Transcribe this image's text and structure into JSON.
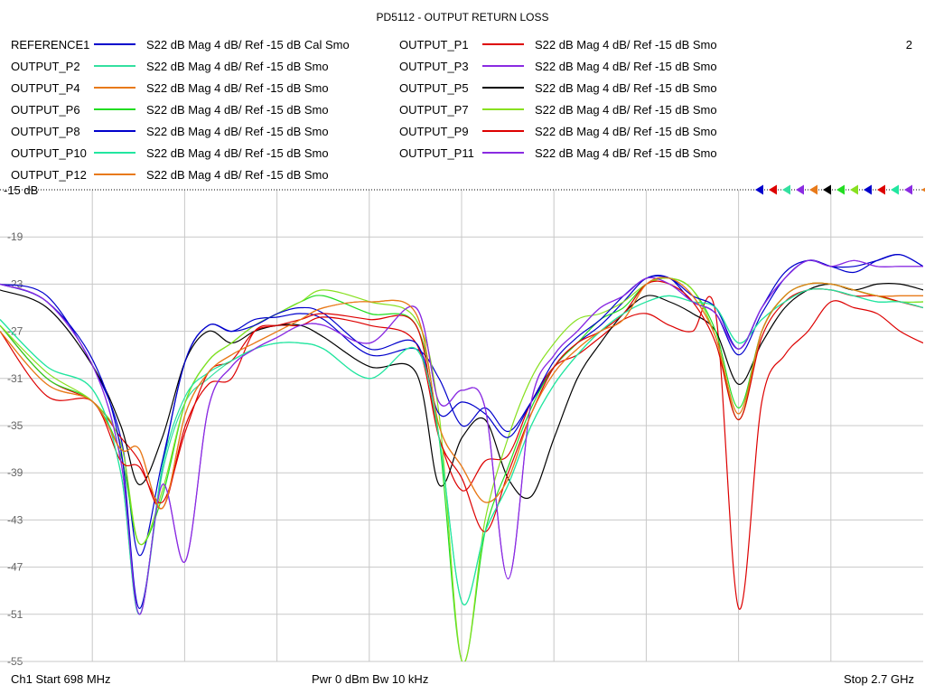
{
  "header": {
    "title": "PD5112 - OUTPUT RETURN LOSS",
    "channel_number": "2"
  },
  "legend": [
    {
      "name": "REFERENCE1",
      "desc": "S22  dB Mag  4 dB/ Ref -15 dB  Cal Smo",
      "color": "#0000cc"
    },
    {
      "name": "OUTPUT_P1",
      "desc": "S22  dB Mag  4 dB/ Ref -15 dB  Smo",
      "color": "#dd0000"
    },
    {
      "name": "OUTPUT_P2",
      "desc": "S22  dB Mag  4 dB/ Ref -15 dB  Smo",
      "color": "#33e0a0"
    },
    {
      "name": "OUTPUT_P3",
      "desc": "S22  dB Mag  4 dB/ Ref -15 dB  Smo",
      "color": "#8a2be2"
    },
    {
      "name": "OUTPUT_P4",
      "desc": "S22  dB Mag  4 dB/ Ref -15 dB  Smo",
      "color": "#e87a1a"
    },
    {
      "name": "OUTPUT_P5",
      "desc": "S22  dB Mag  4 dB/ Ref -15 dB  Smo",
      "color": "#000000"
    },
    {
      "name": "OUTPUT_P6",
      "desc": "S22  dB Mag  4 dB/ Ref -15 dB  Smo",
      "color": "#22dd22"
    },
    {
      "name": "OUTPUT_P7",
      "desc": "S22  dB Mag  4 dB/ Ref -15 dB  Smo",
      "color": "#88e020"
    },
    {
      "name": "OUTPUT_P8",
      "desc": "S22  dB Mag  4 dB/ Ref -15 dB  Smo",
      "color": "#0000cc"
    },
    {
      "name": "OUTPUT_P9",
      "desc": "S22  dB Mag  4 dB/ Ref -15 dB  Smo",
      "color": "#dd0000"
    },
    {
      "name": "OUTPUT_P10",
      "desc": "S22  dB Mag  4 dB/ Ref -15 dB  Smo",
      "color": "#22e6a0"
    },
    {
      "name": "OUTPUT_P11",
      "desc": "S22  dB Mag  4 dB/ Ref -15 dB  Smo",
      "color": "#8a2be2"
    },
    {
      "name": "OUTPUT_P12",
      "desc": "S22  dB Mag  4 dB/ Ref -15 dB  Smo",
      "color": "#e87a1a"
    }
  ],
  "ref_label": "-15 dB",
  "footer": {
    "start": "Ch1  Start  698 MHz",
    "power": "Pwr  0 dBm  Bw  10 kHz",
    "stop": "Stop  2.7 GHz"
  },
  "chart_data": {
    "type": "line",
    "title": "PD5112 - OUTPUT RETURN LOSS",
    "xlabel": "",
    "ylabel": "",
    "xlim": [
      698,
      2700
    ],
    "ylim": [
      -55,
      -15
    ],
    "x_unit": "MHz",
    "y_unit": "dB",
    "grid": true,
    "y_ticks": [
      -19,
      -23,
      -27,
      -31,
      -35,
      -39,
      -43,
      -47,
      -51,
      -55
    ],
    "y_tick_labels": [
      "-19",
      "-23",
      "-27",
      "-31",
      "-35",
      "-39",
      "-43",
      "-47",
      "-51",
      "-55"
    ],
    "x_divisions": 10,
    "series": [
      {
        "name": "REFERENCE1",
        "color": "#0000cc",
        "x": [
          698,
          800,
          900,
          960,
          1000,
          1050,
          1100,
          1150,
          1200,
          1250,
          1300,
          1350,
          1400,
          1500,
          1600,
          1650,
          1700,
          1750,
          1800,
          1850,
          1900,
          1950,
          2000,
          2050,
          2100,
          2150,
          2200,
          2250,
          2300,
          2350,
          2400,
          2450,
          2500,
          2550,
          2600,
          2650,
          2700
        ],
        "y": [
          -23.0,
          -24.0,
          -30.0,
          -36.0,
          -46.0,
          -38.0,
          -29.5,
          -26.5,
          -27.0,
          -26.0,
          -25.8,
          -25.5,
          -26.0,
          -29.0,
          -28.5,
          -31.0,
          -35.0,
          -33.5,
          -35.5,
          -33.0,
          -30.0,
          -28.0,
          -26.5,
          -24.5,
          -22.5,
          -22.5,
          -24.5,
          -25.5,
          -29.0,
          -25.5,
          -22.5,
          -21.0,
          -21.5,
          -22.0,
          -21.0,
          -20.5,
          -21.5
        ]
      },
      {
        "name": "OUTPUT_P1",
        "color": "#dd0000",
        "x": [
          698,
          800,
          900,
          960,
          1000,
          1050,
          1100,
          1150,
          1200,
          1250,
          1300,
          1350,
          1400,
          1500,
          1600,
          1650,
          1700,
          1750,
          1800,
          1850,
          1900,
          1950,
          2000,
          2050,
          2100,
          2150,
          2200,
          2250,
          2300,
          2350,
          2400,
          2450,
          2500,
          2550,
          2600,
          2650,
          2700
        ],
        "y": [
          -26.5,
          -31.0,
          -33.0,
          -36.0,
          -38.0,
          -42.0,
          -35.0,
          -31.5,
          -31.0,
          -27.0,
          -26.5,
          -26.5,
          -25.8,
          -26.5,
          -28.0,
          -36.0,
          -40.5,
          -38.0,
          -37.5,
          -33.0,
          -30.0,
          -29.0,
          -27.5,
          -26.0,
          -25.5,
          -26.5,
          -27.0,
          -25.5,
          -50.5,
          -33.0,
          -29.0,
          -27.0,
          -24.5,
          -25.0,
          -25.5,
          -27.0,
          -28.0
        ]
      },
      {
        "name": "OUTPUT_P2",
        "color": "#33e0a0",
        "x": [
          698,
          800,
          900,
          960,
          1000,
          1050,
          1100,
          1150,
          1200,
          1250,
          1300,
          1350,
          1400,
          1500,
          1600,
          1650,
          1700,
          1750,
          1800,
          1850,
          1900,
          1950,
          2000,
          2050,
          2100,
          2150,
          2200,
          2250,
          2300,
          2350,
          2400,
          2450,
          2500,
          2550,
          2600,
          2650,
          2700
        ],
        "y": [
          -26.0,
          -30.0,
          -32.0,
          -39.0,
          -51.0,
          -39.0,
          -33.0,
          -31.0,
          -29.5,
          -28.5,
          -28.0,
          -28.0,
          -28.5,
          -31.0,
          -28.5,
          -36.0,
          -50.0,
          -44.0,
          -40.0,
          -35.0,
          -31.5,
          -29.0,
          -27.0,
          -25.5,
          -24.5,
          -24.0,
          -24.5,
          -25.0,
          -28.0,
          -26.0,
          -24.5,
          -23.5,
          -23.5,
          -24.0,
          -24.5,
          -24.5,
          -25.0
        ]
      },
      {
        "name": "OUTPUT_P3",
        "color": "#8a2be2",
        "x": [
          698,
          800,
          900,
          960,
          1000,
          1050,
          1100,
          1150,
          1200,
          1250,
          1300,
          1350,
          1400,
          1500,
          1600,
          1650,
          1700,
          1750,
          1800,
          1850,
          1900,
          1950,
          2000,
          2050,
          2100,
          2150,
          2200,
          2250,
          2300,
          2350,
          2400,
          2450,
          2500,
          2550,
          2600,
          2650,
          2700
        ],
        "y": [
          -23.0,
          -24.5,
          -30.0,
          -38.0,
          -51.0,
          -40.0,
          -46.5,
          -33.5,
          -30.0,
          -28.5,
          -27.5,
          -26.5,
          -26.5,
          -28.0,
          -25.0,
          -33.0,
          -32.0,
          -33.5,
          -48.0,
          -33.0,
          -29.0,
          -27.0,
          -25.0,
          -24.0,
          -22.5,
          -23.0,
          -24.5,
          -25.5,
          -28.5,
          -25.0,
          -22.5,
          -21.0,
          -21.5,
          -21.0,
          -21.5,
          -21.5,
          -21.5
        ]
      },
      {
        "name": "OUTPUT_P4",
        "color": "#e87a1a",
        "x": [
          698,
          800,
          900,
          960,
          1000,
          1050,
          1100,
          1150,
          1200,
          1250,
          1300,
          1350,
          1400,
          1500,
          1600,
          1650,
          1700,
          1750,
          1800,
          1850,
          1900,
          1950,
          2000,
          2050,
          2100,
          2150,
          2200,
          2250,
          2300,
          2350,
          2400,
          2450,
          2500,
          2550,
          2600,
          2650,
          2700
        ],
        "y": [
          -27.0,
          -31.5,
          -33.0,
          -37.0,
          -37.0,
          -42.0,
          -34.0,
          -30.5,
          -29.0,
          -28.0,
          -27.0,
          -26.0,
          -25.0,
          -24.5,
          -25.5,
          -35.0,
          -38.5,
          -41.5,
          -39.5,
          -34.0,
          -30.5,
          -28.5,
          -27.0,
          -26.0,
          -23.0,
          -22.5,
          -24.0,
          -27.5,
          -34.0,
          -27.0,
          -24.0,
          -23.0,
          -23.0,
          -23.5,
          -24.0,
          -24.0,
          -24.0
        ]
      },
      {
        "name": "OUTPUT_P5",
        "color": "#000000",
        "x": [
          698,
          800,
          900,
          960,
          1000,
          1050,
          1100,
          1150,
          1200,
          1250,
          1300,
          1350,
          1400,
          1500,
          1600,
          1650,
          1700,
          1750,
          1800,
          1850,
          1900,
          1950,
          2000,
          2050,
          2100,
          2150,
          2200,
          2250,
          2300,
          2350,
          2400,
          2450,
          2500,
          2550,
          2600,
          2650,
          2700
        ],
        "y": [
          -23.5,
          -25.0,
          -30.0,
          -35.0,
          -40.0,
          -36.0,
          -29.5,
          -27.0,
          -28.0,
          -27.0,
          -26.5,
          -26.5,
          -27.5,
          -30.0,
          -30.5,
          -40.0,
          -36.0,
          -34.5,
          -39.5,
          -41.0,
          -36.0,
          -31.0,
          -28.0,
          -25.5,
          -24.0,
          -24.5,
          -25.5,
          -27.0,
          -31.5,
          -28.0,
          -25.0,
          -23.5,
          -23.0,
          -23.5,
          -23.0,
          -23.0,
          -23.5
        ]
      },
      {
        "name": "OUTPUT_P6",
        "color": "#22dd22",
        "x": [
          698,
          800,
          900,
          960,
          1000,
          1050,
          1100,
          1150,
          1200,
          1250,
          1300,
          1350,
          1400,
          1500,
          1600,
          1650,
          1700,
          1750,
          1800,
          1850,
          1900,
          1950,
          2000,
          2050,
          2100,
          2150,
          2200,
          2250,
          2300,
          2350,
          2400,
          2450,
          2500,
          2550,
          2600,
          2650,
          2700
        ],
        "y": [
          -26.5,
          -31.0,
          -33.0,
          -37.5,
          -45.0,
          -41.0,
          -33.0,
          -29.5,
          -28.0,
          -26.5,
          -25.5,
          -24.5,
          -24.0,
          -25.5,
          -26.5,
          -36.0,
          -55.0,
          -44.0,
          -38.5,
          -33.5,
          -30.0,
          -28.0,
          -26.0,
          -25.0,
          -23.0,
          -22.5,
          -23.5,
          -27.0,
          -33.5,
          -27.0,
          -24.0,
          -23.0,
          -23.0,
          -23.5,
          -24.0,
          -24.5,
          -24.5
        ]
      },
      {
        "name": "OUTPUT_P7",
        "color": "#88e020",
        "x": [
          698,
          800,
          900,
          960,
          1000,
          1050,
          1100,
          1150,
          1200,
          1250,
          1300,
          1350,
          1400,
          1500,
          1600,
          1650,
          1700,
          1750,
          1800,
          1850,
          1900,
          1950,
          2000,
          2050,
          2100,
          2150,
          2200,
          2250,
          2300,
          2350,
          2400,
          2450,
          2500,
          2550,
          2600,
          2650,
          2700
        ],
        "y": [
          -26.5,
          -30.5,
          -33.0,
          -36.5,
          -45.0,
          -40.5,
          -33.0,
          -29.5,
          -28.0,
          -26.5,
          -25.5,
          -24.5,
          -23.5,
          -24.5,
          -26.0,
          -34.0,
          -55.0,
          -43.0,
          -36.0,
          -31.0,
          -28.0,
          -26.0,
          -25.5,
          -24.5,
          -23.0,
          -22.5,
          -23.5,
          -27.5,
          -34.5,
          -27.0,
          -24.0,
          -23.0,
          -23.0,
          -23.5,
          -24.0,
          -24.5,
          -24.5
        ]
      },
      {
        "name": "OUTPUT_P8",
        "color": "#0000cc",
        "x": [
          698,
          800,
          900,
          960,
          1000,
          1050,
          1100,
          1150,
          1200,
          1250,
          1300,
          1350,
          1400,
          1500,
          1600,
          1650,
          1700,
          1750,
          1800,
          1850,
          1900,
          1950,
          2000,
          2050,
          2100,
          2150,
          2200,
          2250,
          2300,
          2350,
          2400,
          2450,
          2500,
          2550,
          2600,
          2650,
          2700
        ],
        "y": [
          -23.0,
          -24.5,
          -29.5,
          -37.0,
          -50.5,
          -38.5,
          -29.5,
          -26.5,
          -27.0,
          -26.5,
          -25.5,
          -25.0,
          -25.5,
          -28.5,
          -28.0,
          -34.0,
          -33.0,
          -34.0,
          -36.0,
          -33.0,
          -29.5,
          -27.5,
          -26.0,
          -24.0,
          -22.5,
          -22.5,
          -24.0,
          -25.0,
          -28.5,
          -25.0,
          -22.0,
          -21.0,
          -21.5,
          -21.5,
          -21.0,
          -20.5,
          -21.5
        ]
      },
      {
        "name": "OUTPUT_P9",
        "color": "#dd0000",
        "x": [
          698,
          800,
          900,
          960,
          1000,
          1050,
          1100,
          1150,
          1200,
          1250,
          1300,
          1350,
          1400,
          1500,
          1600,
          1650,
          1700,
          1750,
          1800,
          1850,
          1900,
          1950,
          2000,
          2050,
          2100,
          2150,
          2200,
          2250,
          2300,
          2350,
          2400,
          2450,
          2500,
          2550,
          2600,
          2650,
          2700
        ],
        "y": [
          -27.0,
          -32.5,
          -33.0,
          -38.0,
          -38.5,
          -41.5,
          -35.5,
          -30.5,
          -29.5,
          -27.0,
          -26.5,
          -26.0,
          -25.5,
          -26.0,
          -26.5,
          -36.0,
          -39.5,
          -44.0,
          -39.0,
          -34.0,
          -30.0,
          -28.0,
          -27.0,
          -25.5,
          -23.0,
          -23.0,
          -24.5,
          -28.0,
          -34.5,
          -27.5,
          -24.5,
          -23.5,
          -23.5,
          -24.0,
          -24.0,
          -24.5,
          -25.0
        ]
      },
      {
        "name": "OUTPUT_P10",
        "color": "#22e6a0",
        "x": [
          698,
          800,
          900,
          960,
          1000,
          1050,
          1100,
          1150,
          1200,
          1250,
          1300,
          1350,
          1400,
          1500,
          1600,
          1650,
          1700,
          1750,
          1800,
          1850,
          1900,
          1950,
          2000,
          2050,
          2100,
          2150,
          2200,
          2250,
          2300,
          2350,
          2400,
          2450,
          2500,
          2550,
          2600,
          2650,
          2700
        ],
        "y": [
          -26.0,
          -30.0,
          -32.0,
          -39.0,
          -51.0,
          -38.5,
          -32.5,
          -30.5,
          -29.5,
          -28.5,
          -28.0,
          -28.0,
          -28.5,
          -31.0,
          -28.5,
          -36.0,
          -50.0,
          -44.0,
          -40.0,
          -35.0,
          -31.5,
          -29.0,
          -27.0,
          -25.5,
          -24.5,
          -24.0,
          -24.5,
          -25.0,
          -28.0,
          -26.0,
          -24.5,
          -23.5,
          -23.5,
          -24.0,
          -24.5,
          -24.5,
          -25.0
        ]
      },
      {
        "name": "OUTPUT_P11",
        "color": "#8a2be2",
        "x": [
          698,
          800,
          900,
          960,
          1000,
          1050,
          1100,
          1150,
          1200,
          1250,
          1300,
          1350,
          1400,
          1500,
          1600,
          1650,
          1700,
          1750,
          1800,
          1850,
          1900,
          1950,
          2000,
          2050,
          2100,
          2150,
          2200,
          2250,
          2300,
          2350,
          2400,
          2450,
          2500,
          2550,
          2600,
          2650,
          2700
        ],
        "y": [
          -23.0,
          -24.5,
          -30.0,
          -38.0,
          -51.0,
          -40.0,
          -46.5,
          -33.5,
          -30.0,
          -28.5,
          -27.5,
          -26.5,
          -26.5,
          -28.0,
          -25.0,
          -33.0,
          -32.0,
          -33.5,
          -48.0,
          -33.0,
          -29.0,
          -27.0,
          -25.0,
          -24.0,
          -22.5,
          -23.0,
          -24.5,
          -25.5,
          -28.5,
          -25.0,
          -22.5,
          -21.0,
          -21.5,
          -21.0,
          -21.5,
          -21.5,
          -21.5
        ]
      },
      {
        "name": "OUTPUT_P12",
        "color": "#e87a1a",
        "x": [
          698,
          800,
          900,
          960,
          1000,
          1050,
          1100,
          1150,
          1200,
          1250,
          1300,
          1350,
          1400,
          1500,
          1600,
          1650,
          1700,
          1750,
          1800,
          1850,
          1900,
          1950,
          2000,
          2050,
          2100,
          2150,
          2200,
          2250,
          2300,
          2350,
          2400,
          2450,
          2500,
          2550,
          2600,
          2650,
          2700
        ],
        "y": [
          -27.0,
          -31.5,
          -33.0,
          -37.0,
          -37.0,
          -42.0,
          -34.0,
          -30.5,
          -29.0,
          -28.0,
          -27.0,
          -26.0,
          -25.0,
          -24.5,
          -25.5,
          -35.0,
          -38.5,
          -41.5,
          -39.5,
          -34.0,
          -30.5,
          -28.5,
          -27.0,
          -26.0,
          -23.0,
          -22.5,
          -24.0,
          -27.5,
          -34.0,
          -27.0,
          -24.0,
          -23.0,
          -23.0,
          -23.5,
          -24.0,
          -24.0,
          -24.0
        ]
      }
    ]
  }
}
